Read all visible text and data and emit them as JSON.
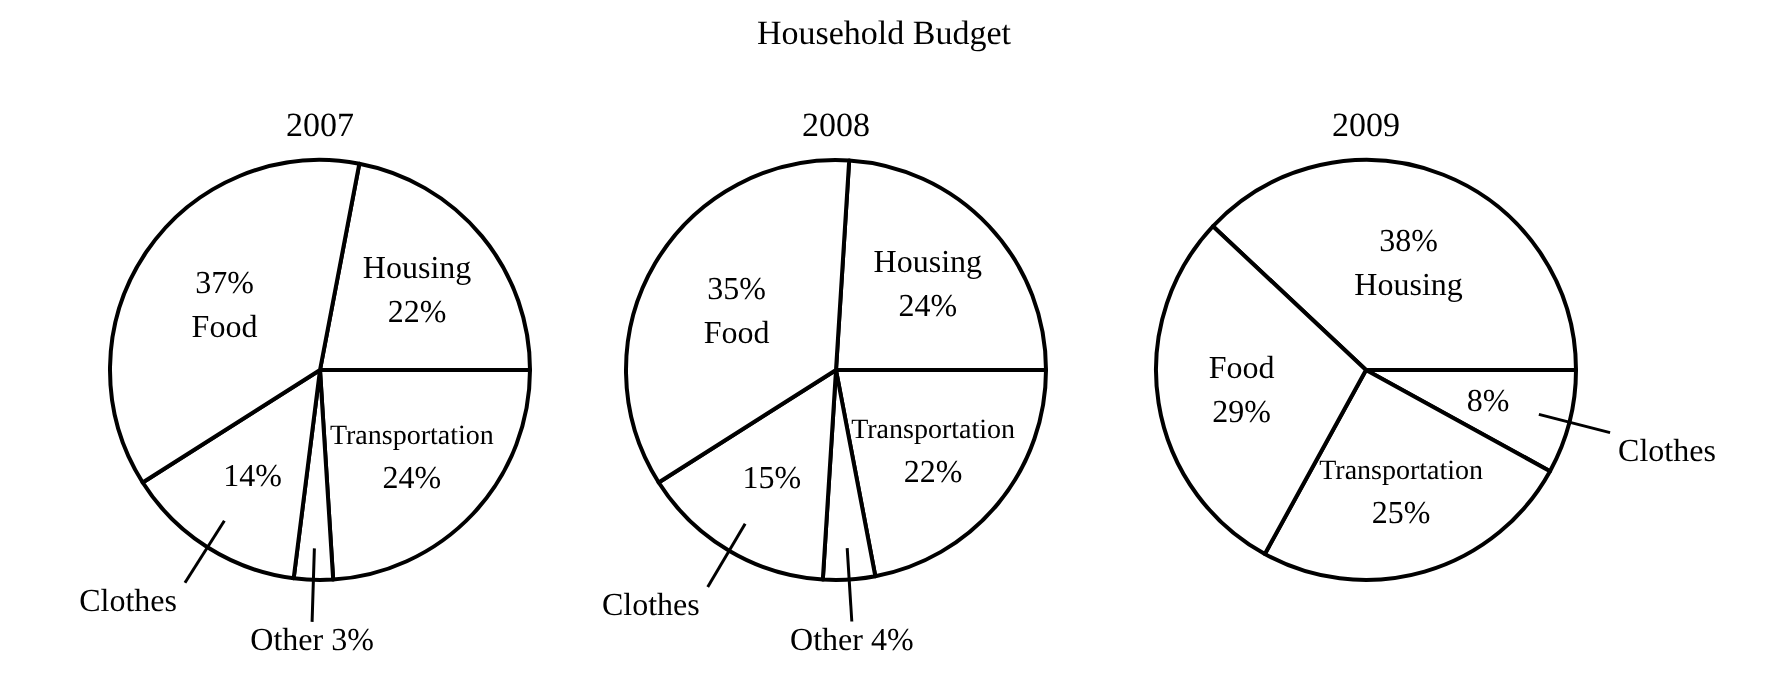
{
  "chart_data": [
    {
      "type": "pie",
      "subtitle": "2007",
      "categories": [
        "Housing",
        "Transportation",
        "Other",
        "Clothes",
        "Food"
      ],
      "values": [
        22,
        24,
        3,
        14,
        37
      ],
      "value_labels": [
        "22%",
        "24%",
        "3%",
        "14%",
        "37%"
      ],
      "colors": [
        "#ffffff",
        "#ffffff",
        "#ffffff",
        "#ffffff",
        "#ffffff"
      ]
    },
    {
      "type": "pie",
      "title": "Household Budget",
      "subtitle": "2008",
      "categories": [
        "Housing",
        "Transportation",
        "Other",
        "Clothes",
        "Food"
      ],
      "values": [
        24,
        22,
        4,
        15,
        35
      ],
      "value_labels": [
        "24%",
        "22%",
        "4%",
        "15%",
        "35%"
      ],
      "colors": [
        "#ffffff",
        "#ffffff",
        "#ffffff",
        "#ffffff",
        "#ffffff"
      ]
    },
    {
      "type": "pie",
      "subtitle": "2009",
      "categories": [
        "Housing",
        "Clothes",
        "Transportation",
        "Food"
      ],
      "values": [
        38,
        8,
        25,
        29
      ],
      "value_labels": [
        "38%",
        "8%",
        "25%",
        "29%"
      ],
      "colors": [
        "#ffffff",
        "#ffffff",
        "#ffffff",
        "#ffffff"
      ]
    }
  ]
}
